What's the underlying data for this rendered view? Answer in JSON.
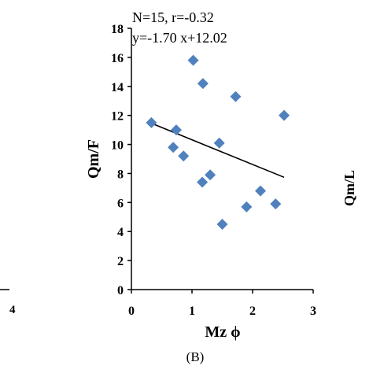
{
  "chart_data": {
    "type": "scatter",
    "title": "",
    "xlabel": "Mz ϕ",
    "ylabel": "Qm/F",
    "xlim": [
      0,
      3
    ],
    "ylim": [
      0,
      18
    ],
    "x_ticks": [
      "0",
      "1",
      "2",
      "3"
    ],
    "y_ticks": [
      "0",
      "2",
      "4",
      "6",
      "8",
      "10",
      "12",
      "14",
      "16",
      "18"
    ],
    "annotations": [
      "N=15, r=-0.32",
      "y=-1.70 x+12.02"
    ],
    "panel_label": "(B)",
    "marker_color": "#4f81bd",
    "trendline_color": "#000000",
    "grid": false,
    "legend": "none",
    "points": [
      {
        "x": 0.33,
        "y": 11.5
      },
      {
        "x": 0.69,
        "y": 9.8
      },
      {
        "x": 0.74,
        "y": 11.0
      },
      {
        "x": 0.86,
        "y": 9.2
      },
      {
        "x": 1.02,
        "y": 15.8
      },
      {
        "x": 1.17,
        "y": 7.4
      },
      {
        "x": 1.18,
        "y": 14.2
      },
      {
        "x": 1.3,
        "y": 7.9
      },
      {
        "x": 1.45,
        "y": 10.1
      },
      {
        "x": 1.5,
        "y": 4.5
      },
      {
        "x": 1.72,
        "y": 13.3
      },
      {
        "x": 1.9,
        "y": 5.7
      },
      {
        "x": 2.13,
        "y": 6.8
      },
      {
        "x": 2.38,
        "y": 5.9
      },
      {
        "x": 2.52,
        "y": 12.0
      }
    ],
    "trendline": {
      "slope": -1.7,
      "intercept": 12.02,
      "x_range": [
        0.33,
        2.52
      ]
    }
  },
  "neighbors": {
    "left_tick": "4",
    "right_label": "Qm/L"
  }
}
